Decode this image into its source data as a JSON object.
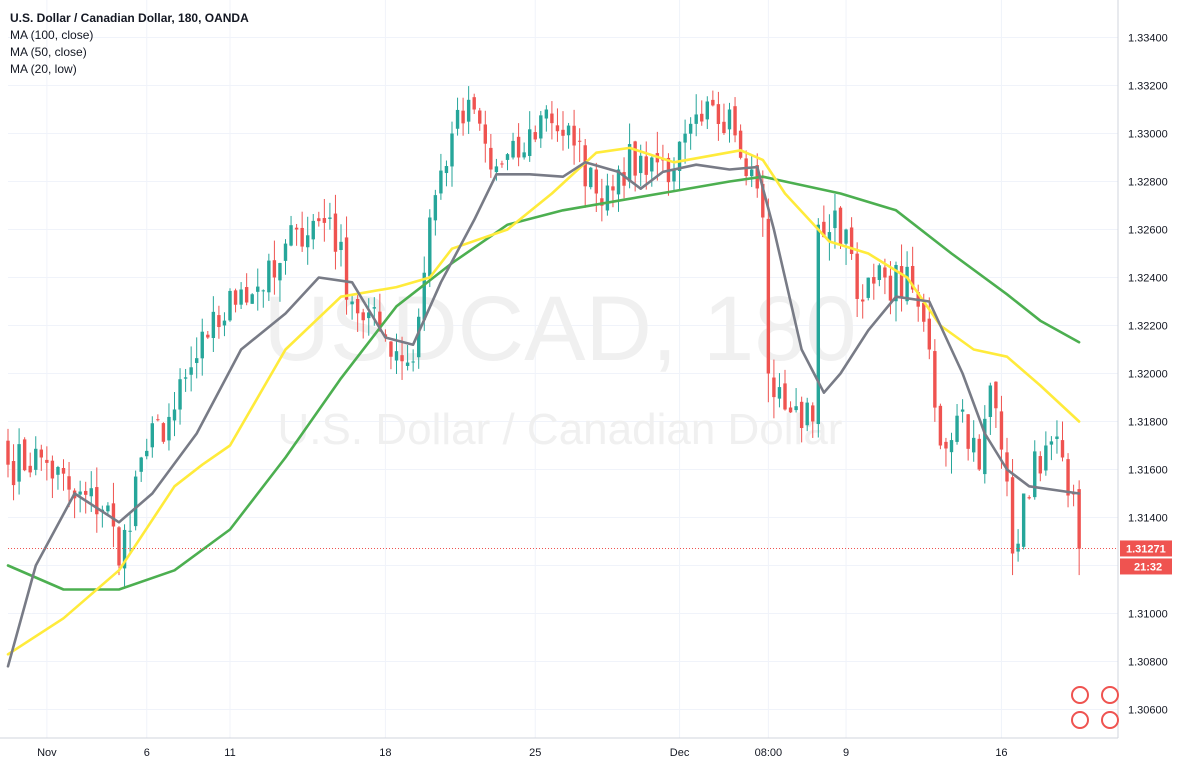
{
  "legend": {
    "title": "U.S. Dollar / Canadian Dollar, 180, OANDA",
    "indicators": [
      "MA (100, close)",
      "MA (50, close)",
      "MA (20, low)"
    ]
  },
  "watermark": {
    "symbol": "USDCAD, 180",
    "name": "U.S. Dollar / Canadian Dollar"
  },
  "chart_data": {
    "type": "candlestick",
    "ylim": [
      1.305,
      1.3355
    ],
    "y_ticks": [
      "1.30600",
      "1.30800",
      "1.31000",
      "1.31200",
      "1.31400",
      "1.31600",
      "1.31800",
      "1.32000",
      "1.32200",
      "1.32400",
      "1.32600",
      "1.32800",
      "1.33000",
      "1.33200",
      "1.33400"
    ],
    "x_ticks": [
      {
        "label": "Nov",
        "bar": 7
      },
      {
        "label": "6",
        "bar": 25
      },
      {
        "label": "11",
        "bar": 40
      },
      {
        "label": "18",
        "bar": 68
      },
      {
        "label": "25",
        "bar": 95
      },
      {
        "label": "Dec",
        "bar": 121
      },
      {
        "label": "08:00",
        "bar": 137
      },
      {
        "label": "9",
        "bar": 151
      },
      {
        "label": "16",
        "bar": 179
      }
    ],
    "last_price": "1.31271",
    "countdown": "21:32",
    "colors": {
      "up": "#26a69a",
      "down": "#ef5350",
      "ma100": "#4caf50",
      "ma50": "#ffeb3b",
      "ma20": "#787b86"
    },
    "key_closes": [
      {
        "bar": 0,
        "c": 1.3162
      },
      {
        "bar": 6,
        "c": 1.3165
      },
      {
        "bar": 12,
        "c": 1.3148
      },
      {
        "bar": 18,
        "c": 1.3145
      },
      {
        "bar": 20,
        "c": 1.312
      },
      {
        "bar": 24,
        "c": 1.3165
      },
      {
        "bar": 30,
        "c": 1.3185
      },
      {
        "bar": 36,
        "c": 1.3215
      },
      {
        "bar": 42,
        "c": 1.3235
      },
      {
        "bar": 48,
        "c": 1.324
      },
      {
        "bar": 52,
        "c": 1.326
      },
      {
        "bar": 58,
        "c": 1.3265
      },
      {
        "bar": 62,
        "c": 1.323
      },
      {
        "bar": 68,
        "c": 1.3215
      },
      {
        "bar": 73,
        "c": 1.3205
      },
      {
        "bar": 76,
        "c": 1.3265
      },
      {
        "bar": 80,
        "c": 1.33
      },
      {
        "bar": 84,
        "c": 1.331
      },
      {
        "bar": 87,
        "c": 1.3285
      },
      {
        "bar": 92,
        "c": 1.329
      },
      {
        "bar": 97,
        "c": 1.331
      },
      {
        "bar": 102,
        "c": 1.3295
      },
      {
        "bar": 106,
        "c": 1.3275
      },
      {
        "bar": 110,
        "c": 1.3285
      },
      {
        "bar": 116,
        "c": 1.329
      },
      {
        "bar": 120,
        "c": 1.3285
      },
      {
        "bar": 125,
        "c": 1.3305
      },
      {
        "bar": 130,
        "c": 1.331
      },
      {
        "bar": 134,
        "c": 1.3285
      },
      {
        "bar": 136,
        "c": 1.3265
      },
      {
        "bar": 137,
        "c": 1.32
      },
      {
        "bar": 140,
        "c": 1.3185
      },
      {
        "bar": 145,
        "c": 1.318
      },
      {
        "bar": 146,
        "c": 1.3262
      },
      {
        "bar": 151,
        "c": 1.326
      },
      {
        "bar": 154,
        "c": 1.323
      },
      {
        "bar": 158,
        "c": 1.324
      },
      {
        "bar": 163,
        "c": 1.3235
      },
      {
        "bar": 166,
        "c": 1.321
      },
      {
        "bar": 168,
        "c": 1.317
      },
      {
        "bar": 172,
        "c": 1.3185
      },
      {
        "bar": 175,
        "c": 1.316
      },
      {
        "bar": 177,
        "c": 1.3195
      },
      {
        "bar": 180,
        "c": 1.3155
      },
      {
        "bar": 181,
        "c": 1.3125
      },
      {
        "bar": 183,
        "c": 1.315
      },
      {
        "bar": 187,
        "c": 1.317
      },
      {
        "bar": 190,
        "c": 1.3165
      },
      {
        "bar": 192,
        "c": 1.315
      },
      {
        "bar": 193,
        "c": 1.3127
      }
    ],
    "series": [
      {
        "name": "MA (100, close)",
        "points": [
          [
            0,
            1.312
          ],
          [
            10,
            1.311
          ],
          [
            20,
            1.311
          ],
          [
            30,
            1.3118
          ],
          [
            40,
            1.3135
          ],
          [
            50,
            1.3165
          ],
          [
            60,
            1.3198
          ],
          [
            70,
            1.3228
          ],
          [
            80,
            1.3246
          ],
          [
            90,
            1.3262
          ],
          [
            100,
            1.3268
          ],
          [
            110,
            1.3272
          ],
          [
            120,
            1.3276
          ],
          [
            130,
            1.328
          ],
          [
            136,
            1.3282
          ],
          [
            140,
            1.328
          ],
          [
            150,
            1.3275
          ],
          [
            160,
            1.3268
          ],
          [
            170,
            1.325
          ],
          [
            180,
            1.3233
          ],
          [
            186,
            1.3222
          ],
          [
            193,
            1.3213
          ]
        ]
      },
      {
        "name": "MA (50, close)",
        "points": [
          [
            0,
            1.3083
          ],
          [
            10,
            1.3098
          ],
          [
            20,
            1.3118
          ],
          [
            30,
            1.3153
          ],
          [
            35,
            1.3162
          ],
          [
            40,
            1.317
          ],
          [
            50,
            1.321
          ],
          [
            60,
            1.3232
          ],
          [
            70,
            1.3236
          ],
          [
            76,
            1.324
          ],
          [
            80,
            1.3252
          ],
          [
            90,
            1.326
          ],
          [
            98,
            1.3275
          ],
          [
            106,
            1.3292
          ],
          [
            112,
            1.3294
          ],
          [
            120,
            1.3288
          ],
          [
            132,
            1.3293
          ],
          [
            136,
            1.3289
          ],
          [
            140,
            1.3275
          ],
          [
            148,
            1.3255
          ],
          [
            155,
            1.325
          ],
          [
            162,
            1.324
          ],
          [
            168,
            1.322
          ],
          [
            174,
            1.321
          ],
          [
            180,
            1.3207
          ],
          [
            186,
            1.3195
          ],
          [
            193,
            1.318
          ]
        ]
      },
      {
        "name": "MA (20, low)",
        "points": [
          [
            0,
            1.3078
          ],
          [
            5,
            1.312
          ],
          [
            12,
            1.315
          ],
          [
            20,
            1.3138
          ],
          [
            26,
            1.315
          ],
          [
            34,
            1.3175
          ],
          [
            42,
            1.321
          ],
          [
            50,
            1.3225
          ],
          [
            56,
            1.324
          ],
          [
            62,
            1.3238
          ],
          [
            68,
            1.3215
          ],
          [
            73,
            1.3212
          ],
          [
            78,
            1.3238
          ],
          [
            84,
            1.3264
          ],
          [
            88,
            1.3283
          ],
          [
            94,
            1.3283
          ],
          [
            100,
            1.3282
          ],
          [
            104,
            1.3288
          ],
          [
            110,
            1.3284
          ],
          [
            114,
            1.3277
          ],
          [
            118,
            1.3284
          ],
          [
            124,
            1.3287
          ],
          [
            130,
            1.3285
          ],
          [
            135,
            1.3286
          ],
          [
            138,
            1.326
          ],
          [
            143,
            1.321
          ],
          [
            147,
            1.3192
          ],
          [
            150,
            1.32
          ],
          [
            155,
            1.3218
          ],
          [
            160,
            1.3232
          ],
          [
            166,
            1.323
          ],
          [
            172,
            1.32
          ],
          [
            176,
            1.3175
          ],
          [
            180,
            1.316
          ],
          [
            184,
            1.3153
          ],
          [
            190,
            1.3151
          ],
          [
            193,
            1.315
          ]
        ]
      }
    ]
  }
}
